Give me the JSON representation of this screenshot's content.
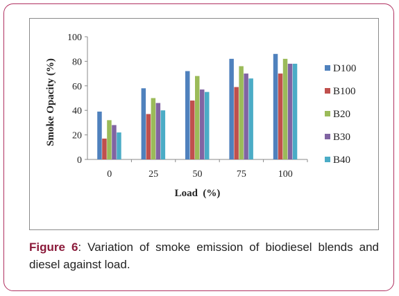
{
  "chart_data": {
    "type": "bar",
    "ylabel": "Smoke Opacity (%)",
    "xlabel": "Load  (%)",
    "categories": [
      "0",
      "25",
      "50",
      "75",
      "100"
    ],
    "ylim": [
      0,
      100
    ],
    "yticks": [
      0,
      20,
      40,
      60,
      80,
      100
    ],
    "grid": false,
    "legend_position": "right",
    "series": [
      {
        "name": "D100",
        "color": "#4f81bd",
        "values": [
          39,
          58,
          72,
          82,
          86
        ]
      },
      {
        "name": "B100",
        "color": "#c0504d",
        "values": [
          17,
          37,
          48,
          59,
          70
        ]
      },
      {
        "name": "B20",
        "color": "#9bbb59",
        "values": [
          32,
          50,
          68,
          76,
          82
        ]
      },
      {
        "name": "B30",
        "color": "#8064a2",
        "values": [
          28,
          46,
          57,
          70,
          78
        ]
      },
      {
        "name": "B40",
        "color": "#4bacc6",
        "values": [
          22,
          40,
          55,
          66,
          78
        ]
      }
    ]
  },
  "caption": {
    "label": "Figure 6",
    "text": ": Variation of smoke emission of biodiesel blends and diesel against load."
  }
}
